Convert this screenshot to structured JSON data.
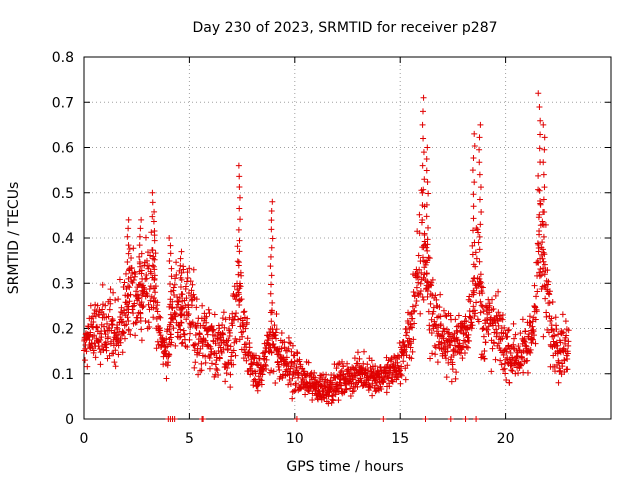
{
  "chart_data": {
    "type": "scatter",
    "title": "Day 230 of 2023, SRMTID for receiver p287",
    "xlabel": "GPS time / hours",
    "ylabel": "SRMTID / TECUs",
    "xlim": [
      0,
      25
    ],
    "ylim": [
      0,
      0.8
    ],
    "xticks": [
      0,
      5,
      10,
      15,
      20
    ],
    "xtick_labels": [
      "0",
      "5",
      "10",
      "15",
      "20"
    ],
    "yticks": [
      0,
      0.1,
      0.2,
      0.3,
      0.4,
      0.5,
      0.6,
      0.7,
      0.8
    ],
    "ytick_labels": [
      "0",
      "0.1",
      "0.2",
      "0.3",
      "0.4",
      "0.5",
      "0.6",
      "0.7",
      "0.8"
    ],
    "grid": true,
    "legend": "none",
    "marker": "+",
    "color": "#e00000",
    "series": [
      {
        "name": "SRMTID",
        "envelope_x": [
          0,
          0.5,
          1,
          1.5,
          2,
          2.2,
          2.6,
          3,
          3.3,
          3.6,
          4,
          4.2,
          4.6,
          5,
          5.5,
          6,
          6.5,
          7,
          7.3,
          7.6,
          8,
          8.5,
          8.9,
          9.3,
          9.8,
          10.3,
          11,
          11.5,
          12,
          12.5,
          13,
          13.5,
          14,
          14.5,
          15,
          15.4,
          15.8,
          16.1,
          16.4,
          16.8,
          17.3,
          17.8,
          18.2,
          18.6,
          18.9,
          19.3,
          19.7,
          20,
          20.5,
          21,
          21.3,
          21.6,
          21.9,
          22.2,
          22.6,
          23
        ],
        "envelope_y": [
          0.16,
          0.18,
          0.2,
          0.19,
          0.24,
          0.28,
          0.26,
          0.3,
          0.34,
          0.18,
          0.14,
          0.24,
          0.26,
          0.25,
          0.18,
          0.16,
          0.17,
          0.16,
          0.3,
          0.18,
          0.12,
          0.1,
          0.2,
          0.12,
          0.12,
          0.09,
          0.07,
          0.07,
          0.08,
          0.09,
          0.1,
          0.1,
          0.09,
          0.1,
          0.12,
          0.18,
          0.28,
          0.4,
          0.26,
          0.2,
          0.16,
          0.17,
          0.2,
          0.34,
          0.22,
          0.2,
          0.19,
          0.15,
          0.14,
          0.15,
          0.2,
          0.4,
          0.3,
          0.18,
          0.17,
          0.16
        ],
        "spread_y": [
          0.05,
          0.06,
          0.07,
          0.07,
          0.08,
          0.08,
          0.08,
          0.09,
          0.1,
          0.05,
          0.04,
          0.07,
          0.08,
          0.08,
          0.06,
          0.06,
          0.06,
          0.06,
          0.1,
          0.06,
          0.04,
          0.04,
          0.07,
          0.05,
          0.05,
          0.03,
          0.03,
          0.03,
          0.03,
          0.03,
          0.03,
          0.03,
          0.03,
          0.03,
          0.04,
          0.06,
          0.1,
          0.13,
          0.09,
          0.06,
          0.05,
          0.05,
          0.06,
          0.11,
          0.08,
          0.07,
          0.06,
          0.05,
          0.05,
          0.05,
          0.06,
          0.13,
          0.1,
          0.06,
          0.06,
          0.05
        ],
        "spikes": [
          {
            "x": 2.1,
            "y": 0.44
          },
          {
            "x": 2.7,
            "y": 0.44
          },
          {
            "x": 3.3,
            "y": 0.5
          },
          {
            "x": 4.1,
            "y": 0.4
          },
          {
            "x": 4.6,
            "y": 0.37
          },
          {
            "x": 7.4,
            "y": 0.56
          },
          {
            "x": 8.9,
            "y": 0.48
          },
          {
            "x": 16.1,
            "y": 0.71
          },
          {
            "x": 16.3,
            "y": 0.6
          },
          {
            "x": 18.5,
            "y": 0.63
          },
          {
            "x": 18.8,
            "y": 0.65
          },
          {
            "x": 21.6,
            "y": 0.72
          },
          {
            "x": 21.8,
            "y": 0.65
          }
        ],
        "zeros": [
          4,
          4.1,
          4.2,
          4.3,
          5.6,
          5.65,
          10.1,
          14.2,
          16.2,
          17.4,
          18.1,
          18.6
        ]
      }
    ]
  }
}
